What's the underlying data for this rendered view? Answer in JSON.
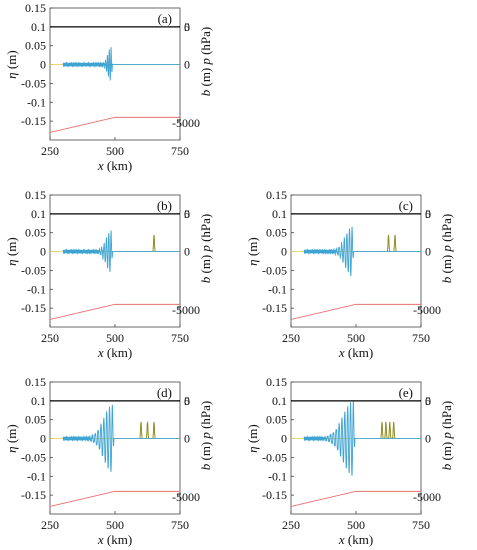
{
  "chart_data": [
    {
      "type": "line",
      "panel_label": "(a)",
      "xlabel": "x (km)",
      "ylabel_left": "η (m)",
      "ylabel_right_top": "p (hPa)",
      "ylabel_right_bottom": "b (m)",
      "xlim": [
        250,
        750
      ],
      "xticks": [
        250,
        500,
        750
      ],
      "eta_ylim": [
        -0.2,
        0.15
      ],
      "eta_yticks": [
        0.15,
        0.1,
        0.05,
        0,
        -0.05,
        -0.1,
        -0.15
      ],
      "p_ylim": [
        -10,
        7.5
      ],
      "p_yticks": [
        5,
        0
      ],
      "b_ylim": [
        -6000,
        1000
      ],
      "b_yticks": [
        0,
        -5000
      ],
      "tick_labels": {
        "x": [
          "250",
          "500",
          "750"
        ],
        "eta": [
          "0.15",
          "0.1",
          "0.05",
          "0",
          "-0.05",
          "-0.1",
          "-0.15"
        ],
        "p": [
          "5",
          "0"
        ],
        "b": [
          "0",
          "-5000"
        ]
      },
      "pressure_pulses_x": [],
      "wave": {
        "x_start": 300,
        "x_front": 485,
        "amplitude": 0.045,
        "lambda": 7,
        "packet_width": 18
      },
      "bathymetry": {
        "x": [
          250,
          500,
          750
        ],
        "y": [
          -5600,
          -4800,
          -4800
        ]
      },
      "sea_level": 0
    },
    {
      "type": "line",
      "panel_label": "(b)",
      "xlabel": "x (km)",
      "ylabel_left": "η (m)",
      "ylabel_right_top": "p (hPa)",
      "ylabel_right_bottom": "b (m)",
      "xlim": [
        250,
        750
      ],
      "xticks": [
        250,
        500,
        750
      ],
      "eta_ylim": [
        -0.2,
        0.15
      ],
      "eta_yticks": [
        0.15,
        0.1,
        0.05,
        0,
        -0.05,
        -0.1,
        -0.15
      ],
      "p_ylim": [
        -10,
        7.5
      ],
      "p_yticks": [
        5,
        0
      ],
      "b_ylim": [
        -6000,
        1000
      ],
      "b_yticks": [
        0,
        -5000
      ],
      "tick_labels": {
        "x": [
          "250",
          "500",
          "750"
        ],
        "eta": [
          "0.15",
          "0.1",
          "0.05",
          "0",
          "-0.05",
          "-0.1",
          "-0.15"
        ],
        "p": [
          "5",
          "0"
        ],
        "b": [
          "0",
          "-5000"
        ]
      },
      "pressure_pulses_x": [
        650
      ],
      "wave": {
        "x_start": 300,
        "x_front": 485,
        "amplitude": 0.055,
        "lambda": 9,
        "packet_width": 28
      },
      "bathymetry": {
        "x": [
          250,
          500,
          750
        ],
        "y": [
          -5600,
          -4800,
          -4800
        ]
      },
      "sea_level": 0
    },
    {
      "type": "line",
      "panel_label": "(c)",
      "xlabel": "x (km)",
      "ylabel_left": "η (m)",
      "ylabel_right_top": "p (hPa)",
      "ylabel_right_bottom": "b (m)",
      "xlim": [
        250,
        750
      ],
      "xticks": [
        250,
        500,
        750
      ],
      "eta_ylim": [
        -0.2,
        0.15
      ],
      "eta_yticks": [
        0.15,
        0.1,
        0.05,
        0,
        -0.05,
        -0.1,
        -0.15
      ],
      "p_ylim": [
        -10,
        7.5
      ],
      "p_yticks": [
        5,
        0
      ],
      "b_ylim": [
        -6000,
        1000
      ],
      "b_yticks": [
        0,
        -5000
      ],
      "tick_labels": {
        "x": [
          "250",
          "500",
          "750"
        ],
        "eta": [
          "0.15",
          "0.1",
          "0.05",
          "0",
          "-0.05",
          "-0.1",
          "-0.15"
        ],
        "p": [
          "5",
          "0"
        ],
        "b": [
          "0",
          "-5000"
        ]
      },
      "pressure_pulses_x": [
        625,
        650
      ],
      "wave": {
        "x_start": 300,
        "x_front": 485,
        "amplitude": 0.065,
        "lambda": 10,
        "packet_width": 38
      },
      "bathymetry": {
        "x": [
          250,
          500,
          750
        ],
        "y": [
          -5600,
          -4800,
          -4800
        ]
      },
      "sea_level": 0
    },
    {
      "type": "line",
      "panel_label": "(d)",
      "xlabel": "x (km)",
      "ylabel_left": "η (m)",
      "ylabel_right_top": "p (hPa)",
      "ylabel_right_bottom": "b (m)",
      "xlim": [
        250,
        750
      ],
      "xticks": [
        250,
        500,
        750
      ],
      "eta_ylim": [
        -0.2,
        0.15
      ],
      "eta_yticks": [
        0.15,
        0.1,
        0.05,
        0,
        -0.05,
        -0.1,
        -0.15
      ],
      "p_ylim": [
        -10,
        7.5
      ],
      "p_yticks": [
        5,
        0
      ],
      "b_ylim": [
        -6000,
        1000
      ],
      "b_yticks": [
        0,
        -5000
      ],
      "tick_labels": {
        "x": [
          "250",
          "500",
          "750"
        ],
        "eta": [
          "0.15",
          "0.1",
          "0.05",
          "0",
          "-0.05",
          "-0.1",
          "-0.15"
        ],
        "p": [
          "5",
          "0"
        ],
        "b": [
          "0",
          "-5000"
        ]
      },
      "pressure_pulses_x": [
        600,
        625,
        650
      ],
      "wave": {
        "x_start": 300,
        "x_front": 490,
        "amplitude": 0.09,
        "lambda": 11,
        "packet_width": 48
      },
      "bathymetry": {
        "x": [
          250,
          500,
          750
        ],
        "y": [
          -5600,
          -4800,
          -4800
        ]
      },
      "sea_level": 0
    },
    {
      "type": "line",
      "panel_label": "(e)",
      "xlabel": "x (km)",
      "ylabel_left": "η (m)",
      "ylabel_right_top": "p (hPa)",
      "ylabel_right_bottom": "b (m)",
      "xlim": [
        250,
        750
      ],
      "xticks": [
        250,
        500,
        750
      ],
      "eta_ylim": [
        -0.2,
        0.15
      ],
      "eta_yticks": [
        0.15,
        0.1,
        0.05,
        0,
        -0.05,
        -0.1,
        -0.15
      ],
      "p_ylim": [
        -10,
        7.5
      ],
      "p_yticks": [
        5,
        0
      ],
      "b_ylim": [
        -6000,
        1000
      ],
      "b_yticks": [
        0,
        -5000
      ],
      "tick_labels": {
        "x": [
          "250",
          "500",
          "750"
        ],
        "eta": [
          "0.15",
          "0.1",
          "0.05",
          "0",
          "-0.05",
          "-0.1",
          "-0.15"
        ],
        "p": [
          "5",
          "0"
        ],
        "b": [
          "0",
          "-5000"
        ]
      },
      "pressure_pulses_x": [
        600,
        615,
        630,
        645
      ],
      "wave": {
        "x_start": 300,
        "x_front": 490,
        "amplitude": 0.1,
        "lambda": 11,
        "packet_width": 58
      },
      "bathymetry": {
        "x": [
          250,
          500,
          750
        ],
        "y": [
          -5600,
          -4800,
          -4800
        ]
      },
      "sea_level": 0
    }
  ],
  "colors": {
    "eta": "#3ea4d2",
    "pressure": "#e8d35c",
    "pressure_pulse": "#8a8a2a",
    "bathymetry": "#e87070",
    "sea_level": "#000000",
    "frame": "#444444"
  }
}
